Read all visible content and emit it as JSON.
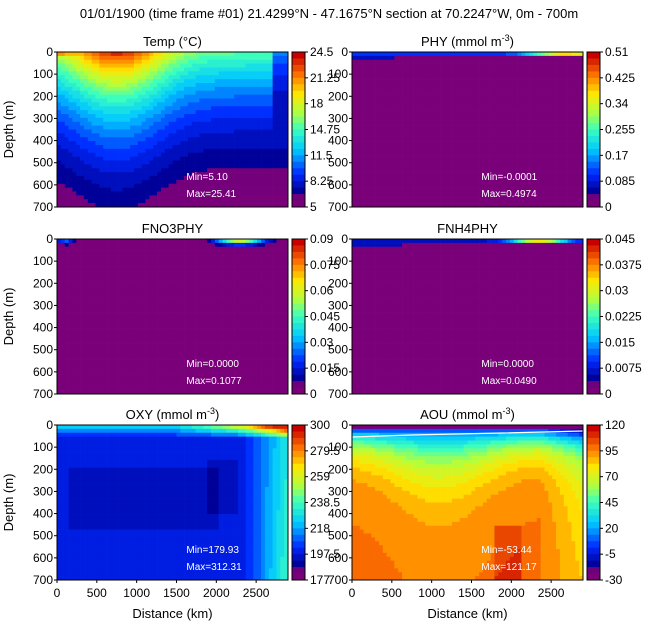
{
  "figure": {
    "suptitle": "01/01/1900 (time frame #01) 21.4299°N - 47.1675°N section at 70.2247°W, 0m - 700m"
  },
  "chart_data": [
    {
      "type": "heatmap",
      "id": "temp",
      "title_main": "Temp (°C)",
      "title_sup": "",
      "ylabel": "Depth (m)",
      "xlabel": "",
      "yticks": [
        "0",
        "100",
        "200",
        "300",
        "400",
        "500",
        "600",
        "700"
      ],
      "xticks": [],
      "ylim": [
        0,
        700
      ],
      "xlim": [
        0,
        2900
      ],
      "colorbar": {
        "ticks": [
          "24.5",
          "21.25",
          "18",
          "14.75",
          "11.5",
          "8.25",
          "5"
        ],
        "min": 5,
        "max": 24.5
      },
      "stats": {
        "min": "Min=5.10",
        "max": "Max=25.41"
      }
    },
    {
      "type": "heatmap",
      "id": "phy",
      "title_main": "PHY (mmol m",
      "title_sup": "-3",
      "ylabel": "",
      "xlabel": "",
      "yticks": [],
      "xticks": [],
      "ylim": [
        0,
        700
      ],
      "xlim": [
        0,
        2900
      ],
      "colorbar": {
        "ticks": [
          "0.51",
          "0.425",
          "0.34",
          "0.255",
          "0.17",
          "0.085",
          "0"
        ],
        "min": 0,
        "max": 0.51
      },
      "stats": {
        "min": "Min=-0.0001",
        "max": "Max=0.4974"
      }
    },
    {
      "type": "heatmap",
      "id": "fno3phy",
      "title_main": "FNO3PHY",
      "title_sup": "",
      "ylabel": "Depth (m)",
      "xlabel": "",
      "yticks": [
        "0",
        "100",
        "200",
        "300",
        "400",
        "500",
        "600",
        "700"
      ],
      "xticks": [],
      "ylim": [
        0,
        700
      ],
      "xlim": [
        0,
        2900
      ],
      "colorbar": {
        "ticks": [
          "0.09",
          "0.075",
          "0.06",
          "0.045",
          "0.03",
          "0.015",
          "0"
        ],
        "min": 0,
        "max": 0.09
      },
      "stats": {
        "min": "Min=0.0000",
        "max": "Max=0.1077"
      }
    },
    {
      "type": "heatmap",
      "id": "fnh4phy",
      "title_main": "FNH4PHY",
      "title_sup": "",
      "ylabel": "",
      "xlabel": "",
      "yticks": [],
      "xticks": [],
      "ylim": [
        0,
        700
      ],
      "xlim": [
        0,
        2900
      ],
      "colorbar": {
        "ticks": [
          "0.045",
          "0.0375",
          "0.03",
          "0.0225",
          "0.015",
          "0.0075",
          "0"
        ],
        "min": 0,
        "max": 0.045
      },
      "stats": {
        "min": "Min=0.0000",
        "max": "Max=0.0490"
      }
    },
    {
      "type": "heatmap",
      "id": "oxy",
      "title_main": "OXY (mmol m",
      "title_sup": "-3",
      "ylabel": "Depth (m)",
      "xlabel": "Distance (km)",
      "yticks": [
        "0",
        "100",
        "200",
        "300",
        "400",
        "500",
        "600",
        "700"
      ],
      "xticks": [
        "0",
        "500",
        "1000",
        "1500",
        "2000",
        "2500"
      ],
      "ylim": [
        0,
        700
      ],
      "xlim": [
        0,
        2900
      ],
      "colorbar": {
        "ticks": [
          "300",
          "279.5",
          "259",
          "238.5",
          "218",
          "197.5",
          "177"
        ],
        "min": 177,
        "max": 300
      },
      "stats": {
        "min": "Min=179.93",
        "max": "Max=312.31"
      }
    },
    {
      "type": "heatmap",
      "id": "aou",
      "title_main": "AOU (mmol m",
      "title_sup": "-3",
      "ylabel": "",
      "xlabel": "Distance (km)",
      "yticks": [],
      "xticks": [
        "0",
        "500",
        "1000",
        "1500",
        "2000",
        "2500"
      ],
      "ylim": [
        0,
        700
      ],
      "xlim": [
        0,
        2900
      ],
      "colorbar": {
        "ticks": [
          "120",
          "95",
          "70",
          "45",
          "20",
          "-5",
          "-30"
        ],
        "min": -30,
        "max": 120
      },
      "stats": {
        "min": "Min=-53.44",
        "max": "Max=121.17"
      }
    }
  ]
}
